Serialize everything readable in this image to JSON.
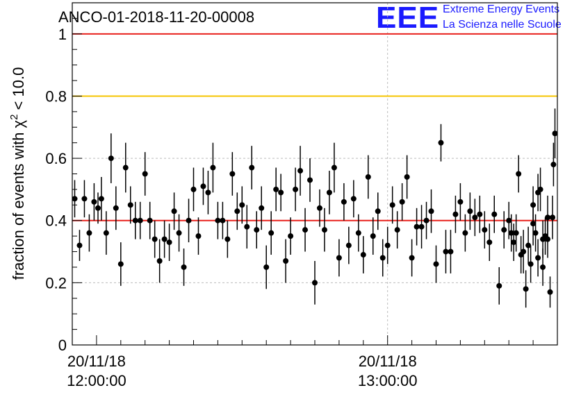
{
  "chart_data": {
    "type": "scatter",
    "title": "ANCO-01-2018-11-20-00008",
    "ylabel": "fraction of events with χ",
    "ylabel_sup": "2",
    "ylabel_tail": " < 10.0",
    "xlabel": "",
    "ylim": [
      0,
      1.1
    ],
    "ytick_values": [
      0,
      0.2,
      0.4,
      0.6,
      0.8,
      1
    ],
    "ytick_labels": [
      "0",
      "0.2",
      "0.4",
      "0.6",
      "0.8",
      "1"
    ],
    "x_unit": "minutes since 11:55:00",
    "xlim": [
      0,
      100
    ],
    "x_ticks": [
      {
        "value": 5,
        "line1": "20/11/18",
        "line2": "12:00:00"
      },
      {
        "value": 65,
        "line1": "20/11/18",
        "line2": "13:00:00"
      }
    ],
    "x_grid": [
      65
    ],
    "reference_lines": [
      {
        "value": 1.0,
        "color": "#e8201c"
      },
      {
        "value": 0.8,
        "color": "#f5c400"
      },
      {
        "value": 0.4,
        "color": "#e8201c"
      }
    ],
    "series": [
      {
        "name": "fraction",
        "x": [
          0.5,
          1.5,
          2.5,
          3.5,
          4.5,
          5.3,
          6.0,
          7.0,
          8.0,
          9.0,
          10.0,
          11.0,
          12.0,
          13.0,
          14.0,
          15.0,
          16.0,
          17.0,
          18.0,
          19.0,
          20.0,
          21.0,
          22.0,
          23.0,
          24.0,
          25.0,
          26.0,
          27.0,
          28.0,
          29.0,
          30.0,
          31.0,
          32.0,
          33.0,
          34.0,
          35.0,
          36.0,
          37.0,
          38.0,
          39.0,
          40.0,
          41.0,
          42.0,
          43.0,
          44.0,
          45.0,
          46.0,
          47.0,
          48.0,
          49.0,
          50.0,
          51.0,
          52.0,
          53.0,
          54.0,
          55.0,
          56.0,
          57.0,
          58.0,
          59.0,
          60.0,
          61.0,
          62.0,
          63.0,
          64.0,
          65.0,
          66.0,
          67.0,
          68.0,
          69.0,
          70.0,
          71.0,
          72.0,
          73.0,
          74.0,
          75.0,
          76.0,
          77.0,
          78.0,
          79.0,
          80.0,
          81.0,
          82.0,
          83.0,
          84.0,
          85.0,
          86.0,
          87.0,
          88.0,
          89.0,
          90.0,
          91.0,
          92.0,
          93.0,
          94.0,
          95.0,
          96.0,
          97.0,
          98.0,
          99.0,
          99.5
        ],
        "y": [
          0.47,
          0.32,
          0.47,
          0.36,
          0.46,
          0.44,
          0.47,
          0.36,
          0.6,
          0.44,
          0.26,
          0.57,
          0.45,
          0.4,
          0.4,
          0.55,
          0.4,
          0.34,
          0.27,
          0.34,
          0.33,
          0.43,
          0.36,
          0.25,
          0.4,
          0.5,
          0.35,
          0.51,
          0.49,
          0.57,
          0.4,
          0.4,
          0.34,
          0.55,
          0.43,
          0.45,
          0.38,
          0.57,
          0.37,
          0.44,
          0.25,
          0.36,
          0.5,
          0.49,
          0.27,
          0.35,
          0.5,
          0.56,
          0.37,
          0.53,
          0.2,
          0.44,
          0.37,
          0.49,
          0.57,
          0.28,
          0.46,
          0.32,
          0.47,
          0.36,
          0.29,
          0.54,
          0.35,
          0.43,
          0.28,
          0.32,
          0.45,
          0.37,
          0.46,
          0.54,
          0.28,
          0.38,
          0.38,
          0.4,
          0.43,
          0.26,
          0.65,
          0.3,
          0.3,
          0.42,
          0.46,
          0.36,
          0.43,
          0.41,
          0.42,
          0.37,
          0.33,
          0.42,
          0.19,
          0.37,
          0.4,
          0.33,
          0.55,
          0.3,
          0.32,
          0.39,
          0.49,
          0.25,
          0.41,
          0.41,
          0.68
        ],
        "yerr": [
          0.06,
          0.05,
          0.06,
          0.06,
          0.06,
          0.05,
          0.07,
          0.07,
          0.08,
          0.07,
          0.07,
          0.08,
          0.06,
          0.06,
          0.06,
          0.07,
          0.06,
          0.06,
          0.07,
          0.06,
          0.06,
          0.06,
          0.06,
          0.06,
          0.07,
          0.07,
          0.06,
          0.06,
          0.07,
          0.08,
          0.06,
          0.06,
          0.06,
          0.07,
          0.06,
          0.06,
          0.07,
          0.07,
          0.06,
          0.07,
          0.07,
          0.07,
          0.07,
          0.06,
          0.07,
          0.06,
          0.07,
          0.08,
          0.07,
          0.07,
          0.07,
          0.06,
          0.07,
          0.07,
          0.08,
          0.06,
          0.06,
          0.06,
          0.06,
          0.06,
          0.06,
          0.07,
          0.06,
          0.06,
          0.06,
          0.06,
          0.06,
          0.06,
          0.06,
          0.07,
          0.06,
          0.06,
          0.07,
          0.06,
          0.07,
          0.06,
          0.06,
          0.07,
          0.07,
          0.06,
          0.06,
          0.06,
          0.06,
          0.06,
          0.06,
          0.06,
          0.06,
          0.06,
          0.06,
          0.06,
          0.06,
          0.06,
          0.06,
          0.07,
          0.06,
          0.07,
          0.06,
          0.06,
          0.07,
          0.07,
          0.08
        ]
      }
    ],
    "extra_points": {
      "x": [
        90.5,
        91.5,
        92.5,
        93.5,
        94.5,
        95.0,
        95.5,
        96.0,
        96.5,
        97.0,
        97.5,
        98.0,
        98.5,
        99.2
      ],
      "y": [
        0.36,
        0.36,
        0.29,
        0.18,
        0.26,
        0.45,
        0.36,
        0.28,
        0.5,
        0.34,
        0.35,
        0.34,
        0.17,
        0.58
      ],
      "yerr": [
        0.06,
        0.06,
        0.06,
        0.06,
        0.06,
        0.06,
        0.06,
        0.06,
        0.07,
        0.06,
        0.06,
        0.06,
        0.05,
        0.07
      ]
    }
  },
  "logo": {
    "mark": "EEE",
    "line1": "Extreme Energy Events",
    "line2": "La Scienza nelle Scuole"
  }
}
